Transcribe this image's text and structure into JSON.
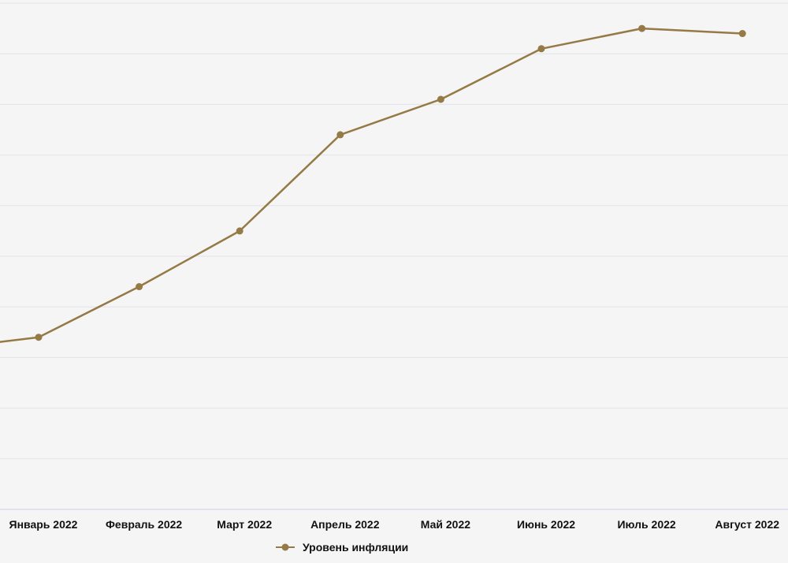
{
  "chart_data": {
    "type": "line",
    "categories": [
      "Январь 2022",
      "Февраль 2022",
      "Март 2022",
      "Апрель 2022",
      "Май 2022",
      "Июнь 2022",
      "Июль 2022",
      "Август 2022"
    ],
    "series": [
      {
        "name": "Уровень инфляции",
        "values": [
          3.4,
          4.4,
          5.5,
          7.4,
          8.1,
          9.1,
          9.5,
          9.4
        ],
        "color": "#957a46"
      }
    ],
    "previous_value": 3.16,
    "ylim": [
      0,
      10
    ],
    "grid": true,
    "legend": "bottom-center"
  },
  "colors": {
    "background": "#f5f5f5",
    "grid": "#e2e4ec",
    "axis": "#c9cde6",
    "series": "#957a46"
  }
}
